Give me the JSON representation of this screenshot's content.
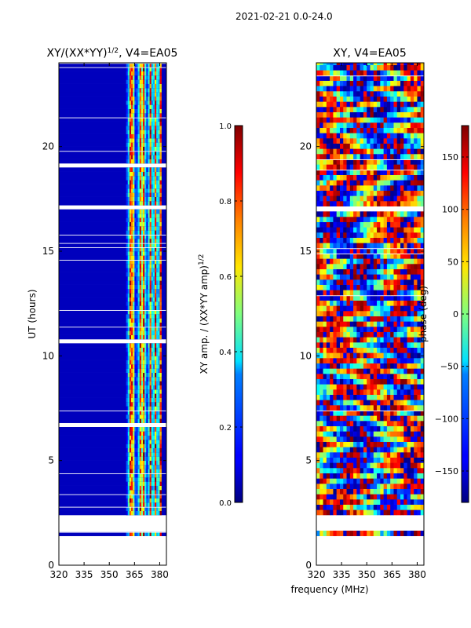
{
  "suptitle": "2021-02-21 0.0-24.0",
  "shared_xlabel": "frequency (MHz)",
  "chart_data": [
    {
      "type": "heatmap",
      "title": "XY/(XX*YY)^(1/2), V4=EA05",
      "title_main": "XY/(XX*YY)",
      "title_sup": "1/2",
      "title_tail": ", V4=EA05",
      "xlabel": "",
      "ylabel": "UT (hours)",
      "xlim": [
        320,
        384
      ],
      "ylim": [
        0,
        24
      ],
      "xticks": [
        "320",
        "335",
        "350",
        "365",
        "380"
      ],
      "xtick_values": [
        320,
        335,
        350,
        365,
        380
      ],
      "yticks": [
        "0",
        "5",
        "10",
        "15",
        "20"
      ],
      "ytick_values": [
        0,
        5,
        10,
        15,
        20
      ],
      "quantity": "amplitude",
      "signal_band_mhz": [
        360,
        381
      ],
      "data_time_range_hours": [
        1.4,
        24
      ],
      "gap_hours": [
        [
          1.7,
          2.3
        ],
        [
          6.7,
          6.9
        ],
        [
          10.6,
          10.8
        ],
        [
          16.9,
          17.2
        ],
        [
          19.0,
          19.2
        ]
      ],
      "colorbar": {
        "label": "XY amp. / (XX*YY amp)^(1/2)",
        "label_main": "XY amp. / (XX*YY amp)",
        "label_sup": "1/2",
        "range": [
          0.0,
          1.0
        ],
        "ticks": [
          "0.0",
          "0.2",
          "0.4",
          "0.6",
          "0.8",
          "1.0"
        ],
        "tick_values": [
          0.0,
          0.2,
          0.4,
          0.6,
          0.8,
          1.0
        ],
        "colormap": "jet"
      }
    },
    {
      "type": "heatmap",
      "title": "XY, V4=EA05",
      "xlabel": "frequency (MHz)",
      "ylabel": "",
      "xlim": [
        320,
        384
      ],
      "ylim": [
        0,
        24
      ],
      "xticks": [
        "320",
        "335",
        "350",
        "365",
        "380"
      ],
      "xtick_values": [
        320,
        335,
        350,
        365,
        380
      ],
      "yticks": [
        "0",
        "5",
        "10",
        "15",
        "20"
      ],
      "ytick_values": [
        0,
        5,
        10,
        15,
        20
      ],
      "quantity": "phase",
      "data_time_range_hours": [
        1.4,
        24
      ],
      "gap_hours": [
        [
          1.7,
          2.3
        ],
        [
          16.9,
          17.1
        ]
      ],
      "colorbar": {
        "label": "phase (deg)",
        "range": [
          -180,
          180
        ],
        "ticks": [
          "−150",
          "−100",
          "−50",
          "0",
          "50",
          "100",
          "150"
        ],
        "tick_values": [
          -150,
          -100,
          -50,
          0,
          50,
          100,
          150
        ],
        "colormap": "jet"
      }
    }
  ]
}
